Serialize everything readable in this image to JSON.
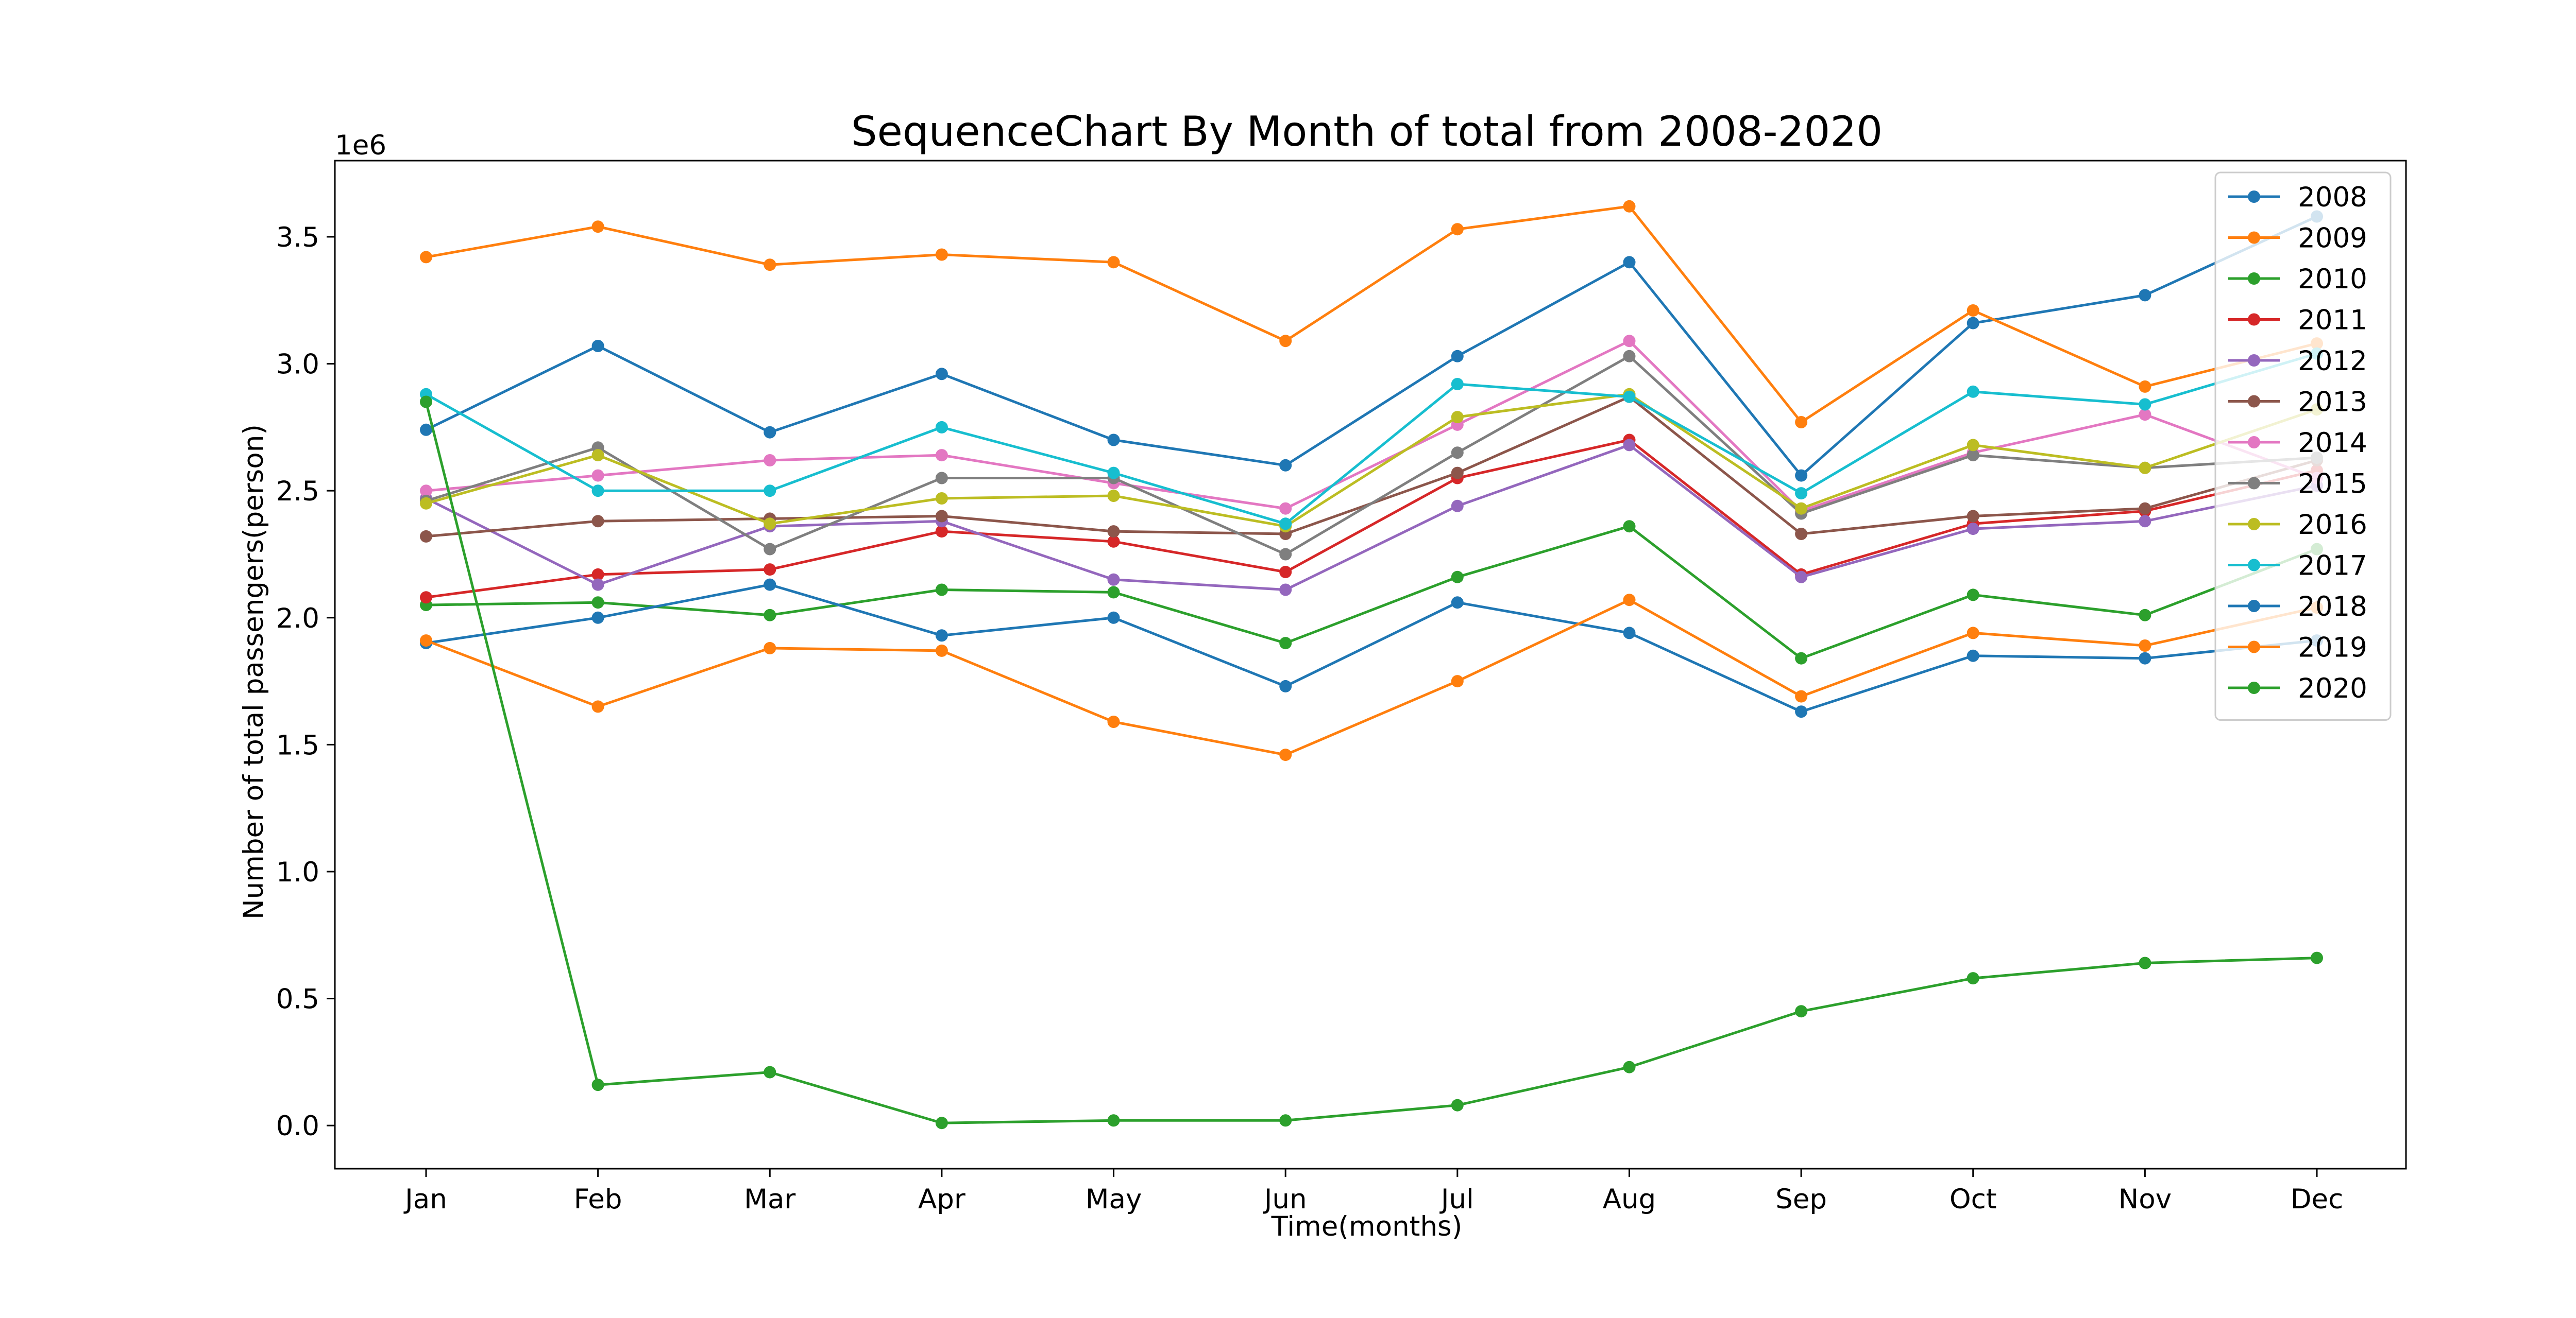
{
  "chart_data": {
    "type": "line",
    "title": "SequenceChart By Month of total from 2008-2020",
    "xlabel": "Time(months)",
    "ylabel": "Number of total passengers(person)",
    "y_offset_label": "1e6",
    "y_scale": 1000000,
    "categories": [
      "Jan",
      "Feb",
      "Mar",
      "Apr",
      "May",
      "Jun",
      "Jul",
      "Aug",
      "Sep",
      "Oct",
      "Nov",
      "Dec"
    ],
    "ylim": [
      -0.17,
      3.8
    ],
    "yticks": [
      0.0,
      0.5,
      1.0,
      1.5,
      2.0,
      2.5,
      3.0,
      3.5
    ],
    "ytick_labels": [
      "0.0",
      "0.5",
      "1.0",
      "1.5",
      "2.0",
      "2.5",
      "3.0",
      "3.5"
    ],
    "legend_position": "top-right",
    "grid": false,
    "series": [
      {
        "name": "2008",
        "color": "#1f77b4",
        "values": [
          2.74,
          3.07,
          2.73,
          2.96,
          2.7,
          2.6,
          3.03,
          3.4,
          2.56,
          3.16,
          3.27,
          3.58
        ]
      },
      {
        "name": "2009",
        "color": "#ff7f0e",
        "values": [
          3.42,
          3.54,
          3.39,
          3.43,
          3.4,
          3.09,
          3.53,
          3.62,
          2.77,
          3.21,
          2.91,
          3.08
        ]
      },
      {
        "name": "2010",
        "color": "#2ca02c",
        "values": [
          2.05,
          2.06,
          2.01,
          2.11,
          2.1,
          1.9,
          2.16,
          2.36,
          1.84,
          2.09,
          2.01,
          2.27
        ]
      },
      {
        "name": "2011",
        "color": "#d62728",
        "values": [
          2.08,
          2.17,
          2.19,
          2.34,
          2.3,
          2.18,
          2.55,
          2.7,
          2.17,
          2.37,
          2.42,
          2.58
        ]
      },
      {
        "name": "2012",
        "color": "#9467bd",
        "values": [
          2.47,
          2.13,
          2.36,
          2.38,
          2.15,
          2.11,
          2.44,
          2.68,
          2.16,
          2.35,
          2.38,
          2.52
        ]
      },
      {
        "name": "2013",
        "color": "#8c564b",
        "values": [
          2.32,
          2.38,
          2.39,
          2.4,
          2.34,
          2.33,
          2.57,
          2.87,
          2.33,
          2.4,
          2.43,
          2.62
        ]
      },
      {
        "name": "2014",
        "color": "#e377c2",
        "values": [
          2.5,
          2.56,
          2.62,
          2.64,
          2.53,
          2.43,
          2.76,
          3.09,
          2.42,
          2.65,
          2.8,
          2.55
        ]
      },
      {
        "name": "2015",
        "color": "#7f7f7f",
        "values": [
          2.46,
          2.67,
          2.27,
          2.55,
          2.55,
          2.25,
          2.65,
          3.03,
          2.41,
          2.64,
          2.59,
          2.63
        ]
      },
      {
        "name": "2016",
        "color": "#bcbd22",
        "values": [
          2.45,
          2.64,
          2.37,
          2.47,
          2.48,
          2.36,
          2.79,
          2.88,
          2.43,
          2.68,
          2.59,
          2.82
        ]
      },
      {
        "name": "2017",
        "color": "#17becf",
        "values": [
          2.88,
          2.5,
          2.5,
          2.75,
          2.57,
          2.37,
          2.92,
          2.87,
          2.49,
          2.89,
          2.84,
          3.04
        ]
      },
      {
        "name": "2018",
        "color": "#1f77b4",
        "values": [
          1.9,
          2.0,
          2.13,
          1.93,
          2.0,
          1.73,
          2.06,
          1.94,
          1.63,
          1.85,
          1.84,
          1.91
        ]
      },
      {
        "name": "2019",
        "color": "#ff7f0e",
        "values": [
          1.91,
          1.65,
          1.88,
          1.87,
          1.59,
          1.46,
          1.75,
          2.07,
          1.69,
          1.94,
          1.89,
          2.04
        ]
      },
      {
        "name": "2020",
        "color": "#2ca02c",
        "values": [
          2.85,
          0.16,
          0.21,
          0.01,
          0.02,
          0.02,
          0.08,
          0.23,
          0.45,
          0.58,
          0.64,
          0.66
        ]
      }
    ]
  }
}
